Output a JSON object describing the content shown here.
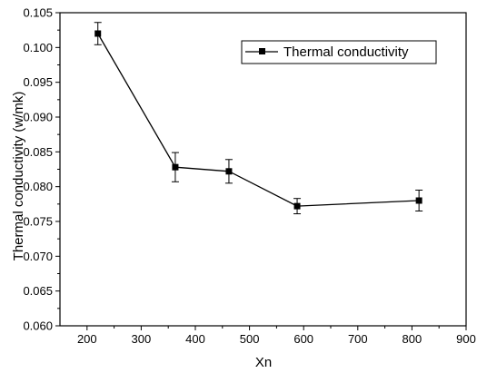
{
  "chart_data": {
    "type": "line",
    "xlabel": "Xn",
    "ylabel": "Thermal conductivity (w/mk)",
    "xlim": [
      150,
      900
    ],
    "ylim": [
      0.06,
      0.105
    ],
    "xticks": [
      "200",
      "300",
      "400",
      "500",
      "600",
      "700",
      "800",
      "900"
    ],
    "yticks": [
      "0.060",
      "0.065",
      "0.070",
      "0.075",
      "0.080",
      "0.085",
      "0.090",
      "0.095",
      "0.100",
      "0.105"
    ],
    "grid": false,
    "legend_position": "top-right",
    "series": [
      {
        "name": "Thermal conductivity",
        "color": "#000000",
        "marker": "square",
        "x": [
          220,
          363,
          462,
          588,
          813
        ],
        "y": [
          0.102,
          0.0828,
          0.0822,
          0.0772,
          0.078
        ],
        "error": [
          0.0016,
          0.0021,
          0.0017,
          0.0011,
          0.0015
        ]
      }
    ]
  }
}
